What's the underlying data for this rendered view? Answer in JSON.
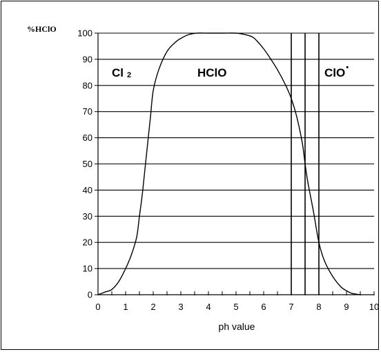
{
  "chart_data": {
    "type": "line",
    "title": "",
    "xlabel": "ph value",
    "ylabel": "%HClO",
    "xlim": [
      0,
      10
    ],
    "ylim": [
      0,
      100
    ],
    "x_ticks": [
      0,
      1,
      2,
      3,
      4,
      5,
      6,
      7,
      8,
      9,
      10
    ],
    "y_ticks": [
      0,
      10,
      20,
      30,
      40,
      50,
      60,
      70,
      80,
      90,
      100
    ],
    "grid": "horizontal",
    "vertical_lines": [
      7,
      7.5,
      8
    ],
    "series": [
      {
        "x": [
          0,
          0.25,
          0.5,
          0.75,
          1.0,
          1.2,
          1.4,
          1.5,
          1.6,
          1.7,
          1.8,
          1.9,
          2.0,
          2.2,
          2.5,
          2.8,
          3.0,
          3.3,
          3.6,
          4.0,
          4.5,
          5.0,
          5.3,
          5.6,
          5.8,
          6.0,
          6.2,
          6.5,
          6.8,
          7.0,
          7.2,
          7.4,
          7.5,
          7.6,
          7.8,
          8.0,
          8.2,
          8.5,
          8.8,
          9.0,
          9.2,
          9.5
        ],
        "y": [
          0,
          1,
          2,
          5,
          10,
          15,
          22,
          30,
          38,
          48,
          58,
          68,
          78,
          86,
          93,
          96.5,
          98,
          99.5,
          100,
          100,
          100,
          100,
          99.5,
          98.5,
          96.5,
          94,
          91,
          86,
          80,
          75,
          68,
          58,
          50,
          43,
          32,
          20,
          13,
          7,
          3,
          1.5,
          0.5,
          0
        ]
      }
    ],
    "annotations": [
      {
        "text": "Cl",
        "sub": "2",
        "x": 0.5,
        "y": 85
      },
      {
        "text": "HClO",
        "x": 3.6,
        "y": 85
      },
      {
        "text": "ClO",
        "sup": "•",
        "x": 8.2,
        "y": 85
      }
    ]
  }
}
